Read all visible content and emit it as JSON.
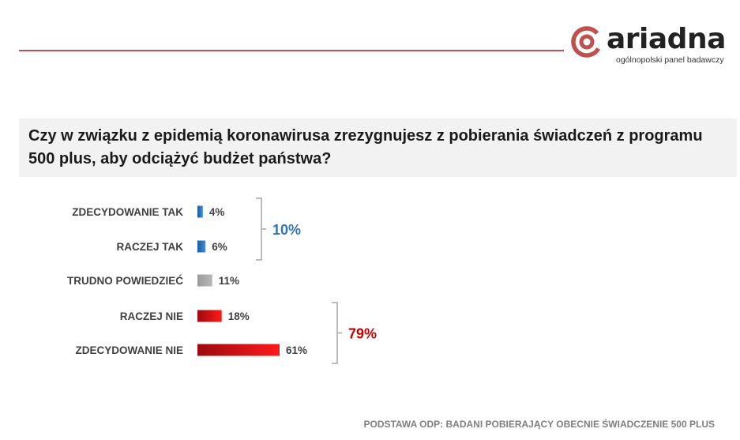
{
  "logo": {
    "name": "ariadna",
    "tagline": "ogólnopolski panel badawczy"
  },
  "question": "Czy w związku z epidemią koronawirusa zrezygnujesz z pobierania świadczeń z programu 500 plus, aby odciążyć budżet państwa?",
  "footnote": "PODSTAWA ODP: BADANI POBIERAJĄCY OBECNIE ŚWIADCZENIE 500 PLUS",
  "colors": {
    "accent_red": "#c0504d",
    "yes_blue": "#1f6fbf",
    "neutral_gray": "#a6a6a6",
    "no_red": "#e8141c",
    "no_red_dark": "#9c0a0f",
    "group_yes_text": "#2e75b6",
    "group_no_text": "#c00000"
  },
  "chart_data": {
    "type": "bar",
    "orientation": "horizontal",
    "unit": "%",
    "xlim": [
      0,
      100
    ],
    "grid": false,
    "categories": [
      "ZDECYDOWANIE TAK",
      "RACZEJ TAK",
      "TRUDNO POWIEDZIEĆ",
      "RACZEJ NIE",
      "ZDECYDOWANIE NIE"
    ],
    "values": [
      4,
      6,
      11,
      18,
      61
    ],
    "value_labels": [
      "4%",
      "6%",
      "11%",
      "18%",
      "61%"
    ],
    "bar_colors": [
      "blue",
      "blue",
      "gray",
      "red",
      "red"
    ],
    "groups": [
      {
        "from": 0,
        "to": 1,
        "label": "10%",
        "value": 10,
        "color": "blue"
      },
      {
        "from": 3,
        "to": 4,
        "label": "79%",
        "value": 79,
        "color": "red"
      }
    ]
  }
}
